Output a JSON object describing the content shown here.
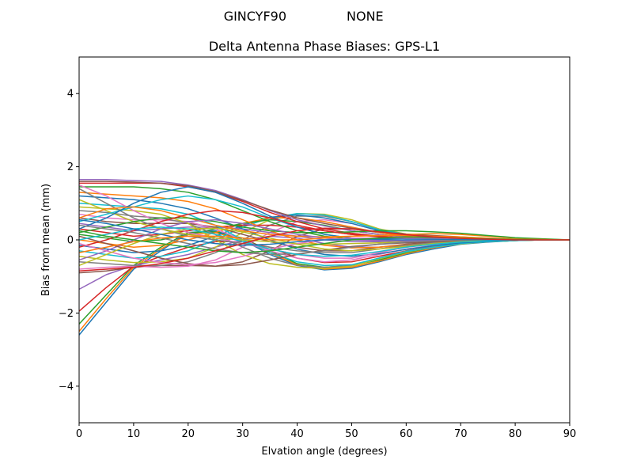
{
  "chart_data": {
    "type": "line",
    "suptitle_left": "GINCYF90",
    "suptitle_right": "NONE",
    "title": "Delta Antenna Phase Biases: GPS-L1",
    "xlabel": "Elvation angle (degrees)",
    "ylabel": "Bias from mean (mm)",
    "xlim": [
      0,
      90
    ],
    "ylim": [
      -5,
      5
    ],
    "xticks": [
      0,
      10,
      20,
      30,
      40,
      50,
      60,
      70,
      80,
      90
    ],
    "yticks": [
      -4,
      -2,
      0,
      2,
      4
    ],
    "ytick_labels": [
      "−4",
      "−2",
      "0",
      "2",
      "4"
    ],
    "grid": false,
    "legend": "none",
    "x": [
      0,
      5,
      10,
      15,
      20,
      25,
      30,
      35,
      40,
      45,
      50,
      55,
      60,
      65,
      70,
      75,
      80,
      85,
      90
    ],
    "palette": [
      "#1f77b4",
      "#ff7f0e",
      "#2ca02c",
      "#d62728",
      "#9467bd",
      "#8c564b",
      "#e377c2",
      "#7f7f7f",
      "#bcbd22",
      "#17becf"
    ],
    "series": [
      {
        "values": [
          -2.6,
          -1.7,
          -0.8,
          -0.3,
          0.2,
          0.25,
          0.0,
          -0.4,
          -0.7,
          -0.82,
          -0.78,
          -0.6,
          -0.4,
          -0.25,
          -0.12,
          -0.06,
          -0.02,
          0.0,
          0.0
        ]
      },
      {
        "values": [
          -2.5,
          -1.6,
          -0.75,
          -0.25,
          0.15,
          0.2,
          0.0,
          -0.35,
          -0.68,
          -0.8,
          -0.75,
          -0.58,
          -0.38,
          -0.22,
          -0.1,
          -0.05,
          -0.02,
          0.0,
          0.0
        ]
      },
      {
        "values": [
          -2.3,
          -1.5,
          -0.7,
          -0.2,
          0.2,
          0.22,
          0.05,
          -0.3,
          -0.65,
          -0.75,
          -0.7,
          -0.55,
          -0.35,
          -0.2,
          -0.1,
          -0.05,
          -0.02,
          0.0,
          0.0
        ]
      },
      {
        "values": [
          -1.95,
          -1.3,
          -0.72,
          -0.45,
          -0.2,
          -0.05,
          -0.05,
          -0.2,
          -0.5,
          -0.62,
          -0.6,
          -0.45,
          -0.3,
          -0.18,
          -0.08,
          -0.04,
          -0.01,
          0.0,
          0.0
        ]
      },
      {
        "values": [
          -1.35,
          -0.95,
          -0.7,
          -0.55,
          -0.4,
          -0.2,
          0.0,
          0.1,
          0.05,
          -0.1,
          -0.2,
          -0.2,
          -0.15,
          -0.1,
          -0.05,
          -0.02,
          0.0,
          0.0,
          0.0
        ]
      },
      {
        "values": [
          -0.9,
          -0.85,
          -0.75,
          -0.7,
          -0.7,
          -0.72,
          -0.6,
          -0.3,
          0.1,
          0.3,
          0.3,
          0.2,
          0.1,
          0.05,
          0.02,
          0.01,
          0.0,
          0.0,
          0.0
        ]
      },
      {
        "values": [
          -0.8,
          -0.75,
          -0.72,
          -0.75,
          -0.72,
          -0.55,
          -0.2,
          0.2,
          0.5,
          0.55,
          0.45,
          0.25,
          0.12,
          0.06,
          0.03,
          0.01,
          0.0,
          0.0,
          0.0
        ]
      },
      {
        "values": [
          -0.6,
          -0.65,
          -0.7,
          -0.7,
          -0.6,
          -0.35,
          0.0,
          0.4,
          0.65,
          0.65,
          0.5,
          0.28,
          0.15,
          0.08,
          0.04,
          0.02,
          0.0,
          0.0,
          0.0
        ]
      },
      {
        "values": [
          -0.45,
          -0.55,
          -0.62,
          -0.6,
          -0.5,
          -0.2,
          0.2,
          0.55,
          0.72,
          0.7,
          0.55,
          0.3,
          0.16,
          0.1,
          0.05,
          0.02,
          0.0,
          0.0,
          0.0
        ]
      },
      {
        "values": [
          -0.3,
          -0.4,
          -0.5,
          -0.45,
          -0.3,
          0.0,
          0.35,
          0.6,
          0.72,
          0.68,
          0.5,
          0.28,
          0.15,
          0.08,
          0.04,
          0.02,
          0.0,
          0.0,
          0.0
        ]
      },
      {
        "values": [
          -0.15,
          -0.25,
          -0.35,
          -0.3,
          -0.15,
          0.1,
          0.4,
          0.62,
          0.68,
          0.6,
          0.45,
          0.25,
          0.12,
          0.07,
          0.03,
          0.01,
          0.0,
          0.0,
          0.0
        ]
      },
      {
        "values": [
          0.0,
          -0.1,
          -0.2,
          -0.15,
          0.0,
          0.2,
          0.45,
          0.6,
          0.6,
          0.5,
          0.35,
          0.2,
          0.1,
          0.05,
          0.02,
          0.01,
          0.0,
          0.0,
          0.0
        ]
      },
      {
        "values": [
          0.15,
          0.05,
          -0.05,
          0.0,
          0.15,
          0.3,
          0.45,
          0.55,
          0.5,
          0.4,
          0.25,
          0.15,
          0.08,
          0.04,
          0.02,
          0.01,
          0.0,
          0.0,
          0.0
        ]
      },
      {
        "values": [
          0.3,
          0.2,
          0.1,
          0.15,
          0.25,
          0.35,
          0.4,
          0.4,
          0.35,
          0.25,
          0.15,
          0.08,
          0.04,
          0.02,
          0.01,
          0.0,
          0.0,
          0.0,
          0.0
        ]
      },
      {
        "values": [
          0.45,
          0.35,
          0.25,
          0.3,
          0.35,
          0.35,
          0.3,
          0.2,
          0.1,
          0.0,
          -0.05,
          -0.05,
          -0.02,
          0.0,
          0.0,
          0.0,
          0.0,
          0.0,
          0.0
        ]
      },
      {
        "values": [
          0.6,
          0.5,
          0.45,
          0.45,
          0.45,
          0.35,
          0.15,
          -0.05,
          -0.2,
          -0.3,
          -0.3,
          -0.2,
          -0.12,
          -0.06,
          -0.03,
          -0.01,
          0.0,
          0.0,
          0.0
        ]
      },
      {
        "values": [
          0.7,
          0.6,
          0.55,
          0.55,
          0.5,
          0.3,
          0.0,
          -0.3,
          -0.5,
          -0.6,
          -0.55,
          -0.4,
          -0.25,
          -0.15,
          -0.08,
          -0.03,
          -0.01,
          0.0,
          0.0
        ]
      },
      {
        "values": [
          0.8,
          0.75,
          0.65,
          0.6,
          0.45,
          0.15,
          -0.2,
          -0.5,
          -0.7,
          -0.75,
          -0.7,
          -0.5,
          -0.3,
          -0.18,
          -0.1,
          -0.05,
          -0.02,
          0.0,
          0.0
        ]
      },
      {
        "values": [
          0.9,
          0.85,
          0.8,
          0.7,
          0.45,
          0.0,
          -0.4,
          -0.65,
          -0.75,
          -0.78,
          -0.72,
          -0.52,
          -0.33,
          -0.2,
          -0.11,
          -0.05,
          -0.02,
          0.0,
          0.0
        ]
      },
      {
        "values": [
          1.0,
          0.95,
          0.9,
          0.85,
          0.7,
          0.4,
          0.0,
          -0.35,
          -0.6,
          -0.7,
          -0.68,
          -0.5,
          -0.32,
          -0.2,
          -0.1,
          -0.05,
          -0.02,
          0.0,
          0.0
        ]
      },
      {
        "values": [
          1.2,
          1.15,
          1.1,
          1.0,
          0.85,
          0.6,
          0.3,
          0.0,
          -0.25,
          -0.4,
          -0.45,
          -0.38,
          -0.26,
          -0.16,
          -0.08,
          -0.04,
          -0.01,
          0.0,
          0.0
        ]
      },
      {
        "values": [
          1.3,
          1.25,
          1.2,
          1.15,
          1.05,
          0.85,
          0.55,
          0.25,
          0.0,
          -0.15,
          -0.22,
          -0.2,
          -0.14,
          -0.09,
          -0.05,
          -0.02,
          0.0,
          0.0,
          0.0
        ]
      },
      {
        "values": [
          1.45,
          1.45,
          1.45,
          1.4,
          1.3,
          1.1,
          0.8,
          0.5,
          0.25,
          0.1,
          0.02,
          -0.02,
          -0.03,
          -0.02,
          -0.01,
          0.0,
          0.0,
          0.0,
          0.0
        ]
      },
      {
        "values": [
          1.55,
          1.55,
          1.55,
          1.55,
          1.45,
          1.3,
          1.05,
          0.75,
          0.5,
          0.3,
          0.18,
          0.1,
          0.05,
          0.03,
          0.02,
          0.01,
          0.0,
          0.0,
          0.0
        ]
      },
      {
        "values": [
          1.65,
          1.65,
          1.62,
          1.6,
          1.5,
          1.35,
          1.1,
          0.8,
          0.55,
          0.38,
          0.25,
          0.15,
          0.08,
          0.04,
          0.02,
          0.01,
          0.0,
          0.0,
          0.0
        ]
      },
      {
        "values": [
          1.6,
          1.6,
          1.58,
          1.55,
          1.48,
          1.32,
          1.08,
          0.82,
          0.6,
          0.45,
          0.32,
          0.22,
          0.16,
          0.12,
          0.08,
          0.04,
          0.02,
          0.01,
          0.0
        ]
      },
      {
        "values": [
          1.5,
          1.2,
          0.8,
          0.45,
          0.2,
          0.05,
          -0.1,
          -0.25,
          -0.4,
          -0.5,
          -0.5,
          -0.35,
          -0.2,
          -0.1,
          -0.05,
          -0.02,
          0.0,
          0.0,
          0.0
        ]
      },
      {
        "values": [
          1.4,
          1.0,
          0.6,
          0.3,
          0.1,
          0.0,
          -0.1,
          -0.2,
          -0.3,
          -0.35,
          -0.35,
          -0.25,
          -0.15,
          -0.08,
          -0.04,
          -0.02,
          0.0,
          0.0,
          0.0
        ]
      },
      {
        "values": [
          1.1,
          0.8,
          0.5,
          0.3,
          0.15,
          0.05,
          0.0,
          -0.05,
          -0.1,
          -0.12,
          -0.1,
          -0.08,
          -0.05,
          -0.02,
          -0.01,
          0.0,
          0.0,
          0.0,
          0.0
        ]
      },
      {
        "values": [
          0.5,
          0.7,
          0.9,
          1.1,
          1.2,
          1.1,
          0.9,
          0.6,
          0.35,
          0.15,
          0.05,
          0.0,
          -0.02,
          -0.02,
          -0.01,
          0.0,
          0.0,
          0.0,
          0.0
        ]
      },
      {
        "values": [
          0.3,
          0.6,
          1.0,
          1.3,
          1.45,
          1.3,
          1.0,
          0.65,
          0.35,
          0.15,
          0.05,
          0.0,
          -0.02,
          -0.02,
          -0.01,
          0.0,
          0.0,
          0.0,
          0.0
        ]
      },
      {
        "values": [
          0.6,
          0.85,
          0.9,
          0.8,
          0.6,
          0.4,
          0.25,
          0.15,
          0.1,
          0.08,
          0.1,
          0.12,
          0.15,
          0.17,
          0.15,
          0.1,
          0.05,
          0.02,
          0.0
        ]
      },
      {
        "values": [
          0.2,
          0.35,
          0.5,
          0.6,
          0.6,
          0.5,
          0.35,
          0.25,
          0.2,
          0.2,
          0.22,
          0.25,
          0.25,
          0.22,
          0.18,
          0.12,
          0.06,
          0.03,
          0.0
        ]
      },
      {
        "values": [
          -0.2,
          0.0,
          0.25,
          0.5,
          0.7,
          0.8,
          0.75,
          0.6,
          0.4,
          0.25,
          0.15,
          0.1,
          0.05,
          0.03,
          0.02,
          0.01,
          0.0,
          0.0,
          0.0
        ]
      },
      {
        "values": [
          -0.55,
          -0.3,
          0.0,
          0.3,
          0.5,
          0.55,
          0.45,
          0.3,
          0.15,
          0.05,
          0.0,
          -0.02,
          -0.03,
          -0.02,
          -0.01,
          0.0,
          0.0,
          0.0,
          0.0
        ]
      },
      {
        "values": [
          0.1,
          -0.1,
          -0.3,
          -0.5,
          -0.65,
          -0.72,
          -0.68,
          -0.55,
          -0.4,
          -0.28,
          -0.18,
          -0.12,
          -0.08,
          -0.05,
          -0.03,
          -0.01,
          0.0,
          0.0,
          0.0
        ]
      },
      {
        "values": [
          -0.1,
          -0.3,
          -0.5,
          -0.62,
          -0.68,
          -0.62,
          -0.45,
          -0.25,
          -0.1,
          0.0,
          0.05,
          0.05,
          0.04,
          0.03,
          0.02,
          0.01,
          0.0,
          0.0,
          0.0
        ]
      },
      {
        "values": [
          0.4,
          0.3,
          0.2,
          0.05,
          -0.1,
          -0.25,
          -0.35,
          -0.4,
          -0.38,
          -0.3,
          -0.2,
          -0.12,
          -0.06,
          -0.03,
          -0.01,
          0.0,
          0.0,
          0.0,
          0.0
        ]
      },
      {
        "values": [
          -0.7,
          -0.4,
          -0.1,
          0.15,
          0.3,
          0.32,
          0.22,
          0.05,
          -0.12,
          -0.25,
          -0.3,
          -0.25,
          -0.18,
          -0.1,
          -0.05,
          -0.02,
          0.0,
          0.0,
          0.0
        ]
      },
      {
        "values": [
          0.0,
          0.15,
          0.3,
          0.35,
          0.3,
          0.15,
          -0.05,
          -0.25,
          -0.4,
          -0.45,
          -0.42,
          -0.32,
          -0.2,
          -0.12,
          -0.06,
          -0.03,
          -0.01,
          0.0,
          0.0
        ]
      },
      {
        "values": [
          0.55,
          0.45,
          0.3,
          0.15,
          0.0,
          -0.1,
          -0.15,
          -0.12,
          -0.05,
          0.0,
          0.02,
          0.03,
          0.02,
          0.02,
          0.01,
          0.0,
          0.0,
          0.0,
          0.0
        ]
      },
      {
        "values": [
          -0.35,
          -0.2,
          -0.05,
          0.05,
          0.1,
          0.1,
          0.05,
          0.0,
          0.0,
          0.05,
          0.1,
          0.12,
          0.12,
          0.1,
          0.08,
          0.05,
          0.02,
          0.01,
          0.0
        ]
      },
      {
        "values": [
          0.25,
          0.1,
          0.0,
          -0.1,
          -0.2,
          -0.3,
          -0.35,
          -0.3,
          -0.2,
          -0.1,
          0.0,
          0.05,
          0.08,
          0.07,
          0.05,
          0.03,
          0.01,
          0.0,
          0.0
        ]
      },
      {
        "values": [
          -0.85,
          -0.8,
          -0.75,
          -0.65,
          -0.5,
          -0.3,
          -0.1,
          0.1,
          0.25,
          0.32,
          0.3,
          0.22,
          0.14,
          0.08,
          0.04,
          0.02,
          0.0,
          0.0,
          0.0
        ]
      }
    ]
  }
}
